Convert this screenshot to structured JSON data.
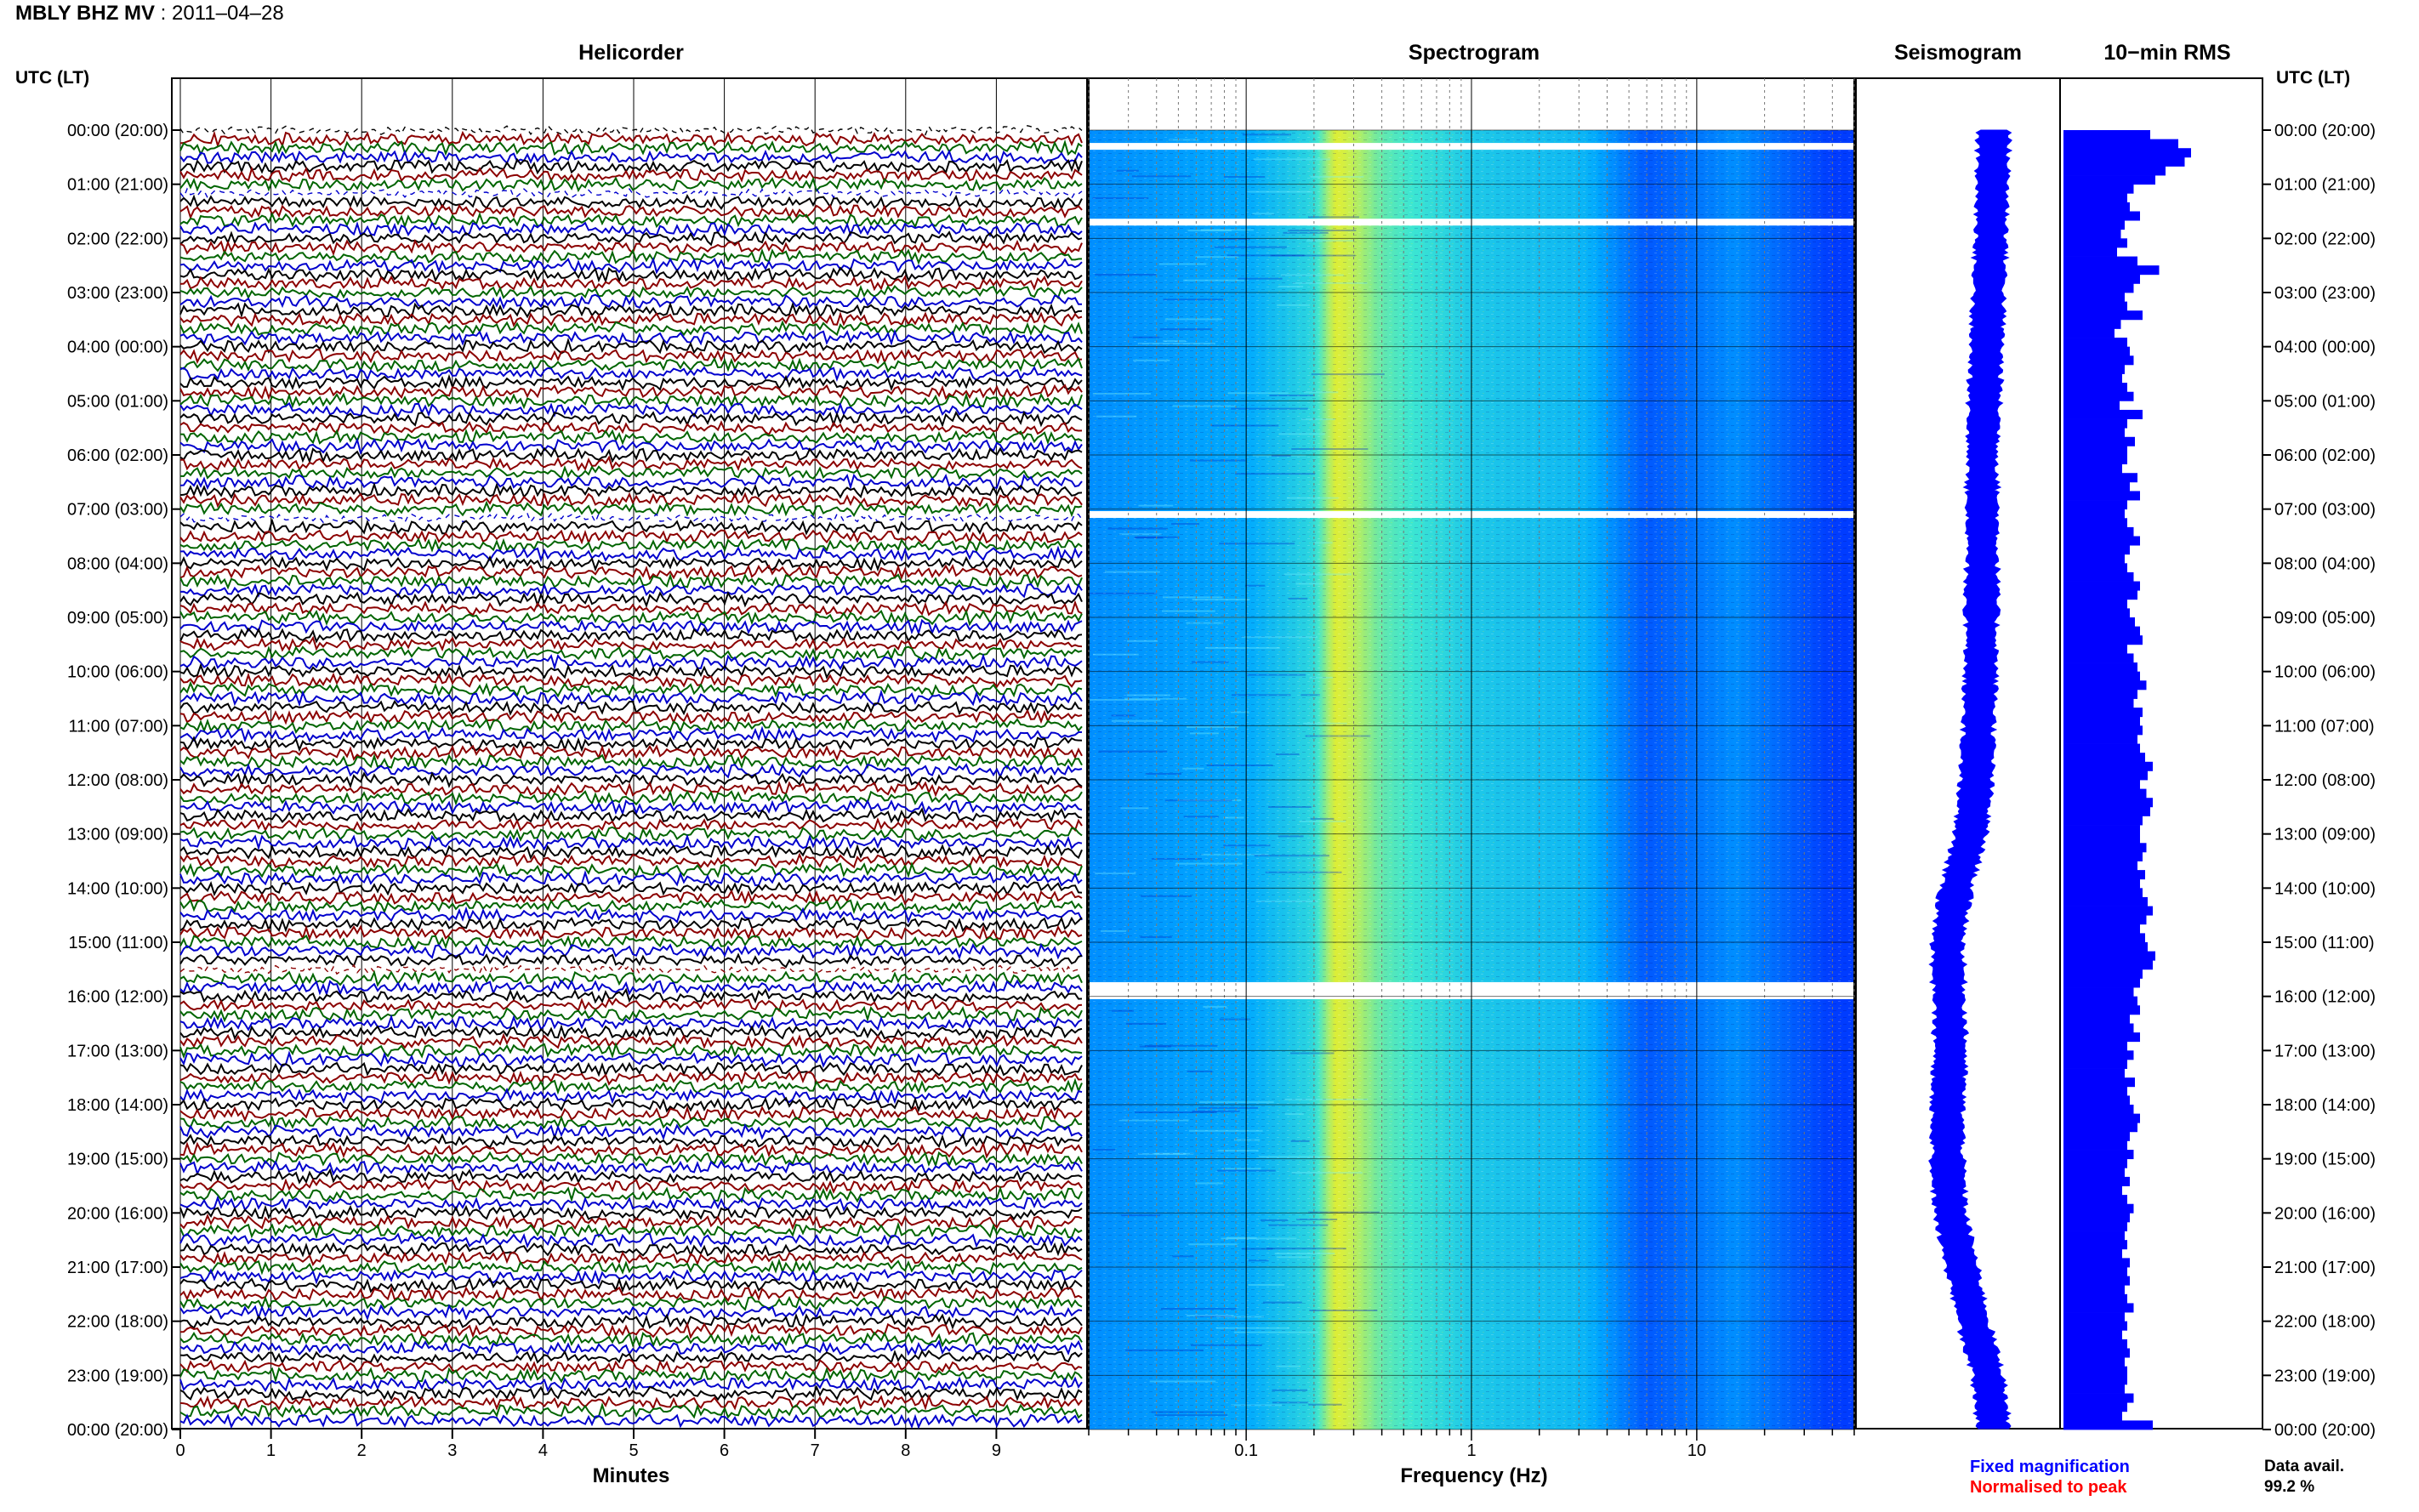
{
  "header": {
    "station": "MBLY BHZ MV",
    "date": "2011–04–28"
  },
  "panels": {
    "helicorder": "Helicorder",
    "spectrogram": "Spectrogram",
    "seismogram": "Seismogram",
    "rms": "10−min RMS"
  },
  "time_axis_label": "UTC (LT)",
  "x_labels": {
    "helicorder": "Minutes",
    "spectrogram": "Frequency (Hz)"
  },
  "legend": {
    "fixed": "Fixed magnification",
    "fixed_color": "#0000ff",
    "normalised": "Normalised to peak",
    "normalised_color": "#ff0000"
  },
  "data_availability": {
    "label": "Data avail.",
    "value": "99.2 %"
  },
  "colors": {
    "trace_cycle": [
      "#000000",
      "#8b0000",
      "#006400",
      "#0000cd"
    ],
    "rms_bar": "#0000ff",
    "seismogram": "#0000ff"
  },
  "chart_data": [
    {
      "type": "line",
      "panel": "Helicorder",
      "xlabel": "Minutes",
      "xlim": [
        0,
        10
      ],
      "x_ticks": [
        "0",
        "1",
        "2",
        "3",
        "4",
        "5",
        "6",
        "7",
        "8",
        "9"
      ],
      "time_labels": [
        "00:00 (20:00)",
        "01:00 (21:00)",
        "02:00 (22:00)",
        "03:00 (23:00)",
        "04:00 (00:00)",
        "05:00 (01:00)",
        "06:00 (02:00)",
        "07:00 (03:00)",
        "08:00 (04:00)",
        "09:00 (05:00)",
        "10:00 (06:00)",
        "11:00 (07:00)",
        "12:00 (08:00)",
        "13:00 (09:00)",
        "14:00 (10:00)",
        "15:00 (11:00)",
        "16:00 (12:00)",
        "17:00 (13:00)",
        "18:00 (14:00)",
        "19:00 (15:00)",
        "20:00 (16:00)",
        "21:00 (17:00)",
        "22:00 (18:00)",
        "23:00 (19:00)",
        "00:00 (20:00)"
      ],
      "traces_per_hour": 6,
      "gap_rows": [
        0,
        7,
        43,
        93
      ]
    },
    {
      "type": "heatmap",
      "panel": "Spectrogram",
      "xlabel": "Frequency (Hz)",
      "x_scale": "log",
      "xlim": [
        0.02,
        50
      ],
      "x_ticks": [
        "0.1",
        "1",
        "10"
      ],
      "gap_hours": [
        0.3,
        1.7,
        7.1,
        15.8
      ],
      "band_intensity": [
        {
          "freq": 0.02,
          "level": 0.35
        },
        {
          "freq": 0.1,
          "level": 0.4
        },
        {
          "freq": 0.2,
          "level": 0.55
        },
        {
          "freq": 0.25,
          "level": 0.85
        },
        {
          "freq": 0.4,
          "level": 0.65
        },
        {
          "freq": 1,
          "level": 0.5
        },
        {
          "freq": 3,
          "level": 0.45
        },
        {
          "freq": 6,
          "level": 0.25
        },
        {
          "freq": 15,
          "level": 0.35
        },
        {
          "freq": 40,
          "level": 0.2
        }
      ]
    },
    {
      "type": "line",
      "panel": "Seismogram",
      "description_values": {
        "hours": [
          0,
          2,
          4,
          6,
          8,
          10,
          12,
          13,
          14,
          15,
          16,
          17,
          18,
          19,
          20,
          21,
          22,
          23,
          24
        ],
        "offset": [
          1.0,
          0.9,
          0.75,
          0.6,
          0.6,
          0.55,
          0.4,
          0.2,
          -0.3,
          -0.6,
          -0.55,
          -0.5,
          -0.6,
          -0.6,
          -0.5,
          -0.1,
          0.3,
          0.8,
          1.0
        ]
      }
    },
    {
      "type": "bar",
      "panel": "10−min RMS",
      "bars_per_hour": 6,
      "values": [
        0.68,
        0.9,
        1.0,
        0.95,
        0.8,
        0.72,
        0.55,
        0.5,
        0.52,
        0.6,
        0.48,
        0.45,
        0.5,
        0.42,
        0.58,
        0.75,
        0.6,
        0.55,
        0.48,
        0.5,
        0.62,
        0.45,
        0.4,
        0.5,
        0.52,
        0.55,
        0.48,
        0.46,
        0.5,
        0.55,
        0.44,
        0.62,
        0.5,
        0.48,
        0.56,
        0.5,
        0.5,
        0.46,
        0.58,
        0.52,
        0.6,
        0.5,
        0.48,
        0.5,
        0.55,
        0.6,
        0.52,
        0.48,
        0.5,
        0.55,
        0.6,
        0.58,
        0.5,
        0.52,
        0.56,
        0.6,
        0.62,
        0.5,
        0.55,
        0.58,
        0.6,
        0.65,
        0.58,
        0.55,
        0.62,
        0.6,
        0.62,
        0.58,
        0.6,
        0.64,
        0.7,
        0.66,
        0.6,
        0.65,
        0.7,
        0.68,
        0.62,
        0.6,
        0.6,
        0.65,
        0.62,
        0.58,
        0.64,
        0.6,
        0.62,
        0.66,
        0.7,
        0.65,
        0.6,
        0.64,
        0.66,
        0.72,
        0.7,
        0.62,
        0.6,
        0.55,
        0.58,
        0.6,
        0.52,
        0.55,
        0.6,
        0.5,
        0.55,
        0.5,
        0.48,
        0.56,
        0.5,
        0.52,
        0.55,
        0.6,
        0.58,
        0.52,
        0.5,
        0.55,
        0.5,
        0.48,
        0.52,
        0.46,
        0.5,
        0.55,
        0.52,
        0.5,
        0.48,
        0.5,
        0.46,
        0.52,
        0.5,
        0.52,
        0.48,
        0.5,
        0.55,
        0.48,
        0.5,
        0.46,
        0.5,
        0.52,
        0.48,
        0.5,
        0.5,
        0.48,
        0.55,
        0.5,
        0.46,
        0.7
      ]
    }
  ]
}
